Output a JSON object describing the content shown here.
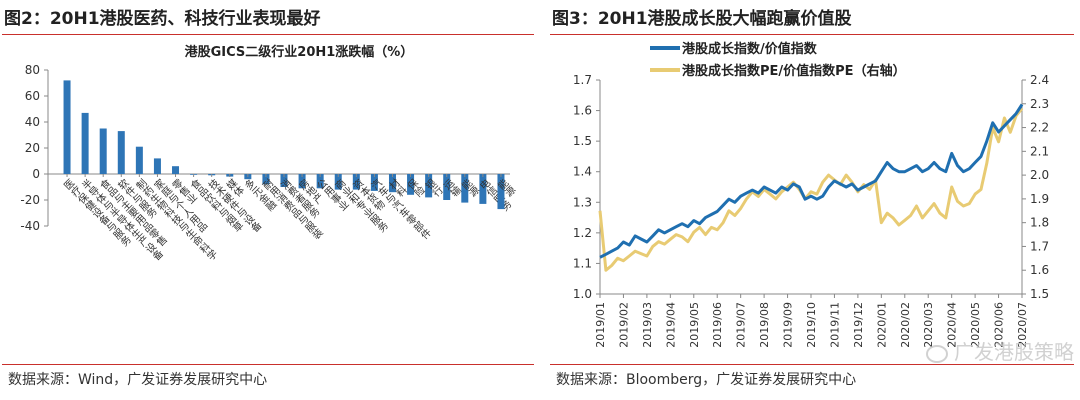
{
  "left_panel": {
    "title": "图2：20H1港股医药、科技行业表现最好",
    "source": "数据来源：Wind，广发证券发展研究中心"
  },
  "right_panel": {
    "title": "图3：20H1港股成长股大幅跑赢价值股",
    "source": "数据来源：Bloomberg，广发证券发展研究中心"
  },
  "watermark": "广发港股策略",
  "colors": {
    "bar": "#2e75b6",
    "growth_line": "#1f6fb0",
    "pe_line": "#e8cb73",
    "rule": "#c9302c"
  },
  "chart_data": [
    {
      "type": "bar",
      "title": "港股GICS二级行业20H1涨跌幅（%）",
      "ylim": [
        -40,
        80
      ],
      "yticks": [
        -40,
        -20,
        0,
        20,
        40,
        60,
        80
      ],
      "yticklabels": [
        "-40",
        "-20",
        "0",
        "20",
        "40",
        "60",
        "80"
      ],
      "categories": [
        "医疗保健设备与服务",
        "半导体与半导体生产设备",
        "食品与主要用品零售",
        "软件与服务",
        "制药生物科技与生命科学",
        "家庭与个人用品",
        "零售业",
        "食品饮料与烟草",
        "技术硬件与设备",
        "媒体",
        "多元金融",
        "耐用消费品与服装",
        "消费者服务",
        "房地产",
        "公用事业",
        "商业和专业服务",
        "资本货物",
        "汽车与汽车零部件",
        "材料",
        "保险",
        "银行",
        "运输",
        "能源",
        "电信服务",
        "能源"
      ],
      "values": [
        72,
        47,
        35,
        33,
        21,
        12,
        6,
        0,
        -1,
        -2,
        -4,
        -8,
        -10,
        -11,
        -11,
        -12,
        -12,
        -13,
        -14,
        -16,
        -18,
        -20,
        -22,
        -23,
        -27
      ]
    },
    {
      "type": "line",
      "legend": [
        "港股成长指数/价值指数",
        "港股成长指数PE/价值指数PE（右轴）"
      ],
      "x_ticks": [
        "2019/01",
        "2019/02",
        "2019/03",
        "2019/04",
        "2019/05",
        "2019/06",
        "2019/07",
        "2019/08",
        "2019/09",
        "2019/10",
        "2019/11",
        "2019/12",
        "2020/01",
        "2020/02",
        "2020/03",
        "2020/04",
        "2020/05",
        "2020/06",
        "2020/07"
      ],
      "left_axis": {
        "ylim": [
          1.0,
          1.7
        ],
        "ticks": [
          "1.0",
          "1.1",
          "1.2",
          "1.3",
          "1.4",
          "1.5",
          "1.6",
          "1.7"
        ]
      },
      "right_axis": {
        "ylim": [
          1.5,
          2.4
        ],
        "ticks": [
          "1.5",
          "1.6",
          "1.7",
          "1.8",
          "1.9",
          "2.0",
          "2.1",
          "2.2",
          "2.3",
          "2.4"
        ]
      },
      "series": [
        {
          "name": "港股成长指数/价值指数",
          "axis": "left",
          "x": [
            0,
            0.25,
            0.5,
            0.75,
            1,
            1.25,
            1.5,
            1.75,
            2,
            2.25,
            2.5,
            2.75,
            3,
            3.25,
            3.5,
            3.75,
            4,
            4.25,
            4.5,
            4.75,
            5,
            5.25,
            5.5,
            5.75,
            6,
            6.25,
            6.5,
            6.75,
            7,
            7.25,
            7.5,
            7.75,
            8,
            8.25,
            8.5,
            8.75,
            9,
            9.25,
            9.5,
            9.75,
            10,
            10.25,
            10.5,
            10.75,
            11,
            11.25,
            11.5,
            11.75,
            12,
            12.25,
            12.5,
            12.75,
            13,
            13.25,
            13.5,
            13.75,
            14,
            14.25,
            14.5,
            14.75,
            15,
            15.25,
            15.5,
            15.75,
            16,
            16.25,
            16.5,
            16.75,
            17,
            17.25,
            17.5,
            17.75,
            18
          ],
          "values": [
            1.12,
            1.13,
            1.14,
            1.15,
            1.17,
            1.16,
            1.19,
            1.18,
            1.17,
            1.19,
            1.21,
            1.2,
            1.21,
            1.22,
            1.23,
            1.22,
            1.24,
            1.23,
            1.25,
            1.26,
            1.27,
            1.29,
            1.31,
            1.3,
            1.32,
            1.33,
            1.34,
            1.33,
            1.35,
            1.34,
            1.33,
            1.35,
            1.34,
            1.36,
            1.35,
            1.31,
            1.32,
            1.31,
            1.32,
            1.35,
            1.37,
            1.36,
            1.35,
            1.36,
            1.34,
            1.35,
            1.36,
            1.37,
            1.4,
            1.43,
            1.41,
            1.4,
            1.4,
            1.41,
            1.42,
            1.4,
            1.41,
            1.43,
            1.41,
            1.4,
            1.46,
            1.42,
            1.4,
            1.41,
            1.43,
            1.45,
            1.5,
            1.56,
            1.53,
            1.55,
            1.57,
            1.59,
            1.62
          ]
        },
        {
          "name": "港股成长指数PE/价值指数PE（右轴）",
          "axis": "right",
          "x": [
            0,
            0.25,
            0.5,
            0.75,
            1,
            1.25,
            1.5,
            1.75,
            2,
            2.25,
            2.5,
            2.75,
            3,
            3.25,
            3.5,
            3.75,
            4,
            4.25,
            4.5,
            4.75,
            5,
            5.25,
            5.5,
            5.75,
            6,
            6.25,
            6.5,
            6.75,
            7,
            7.25,
            7.5,
            7.75,
            8,
            8.25,
            8.5,
            8.75,
            9,
            9.25,
            9.5,
            9.75,
            10,
            10.25,
            10.5,
            10.75,
            11,
            11.25,
            11.5,
            11.75,
            12,
            12.25,
            12.5,
            12.75,
            13,
            13.25,
            13.5,
            13.75,
            14,
            14.25,
            14.5,
            14.75,
            15,
            15.25,
            15.5,
            15.75,
            16,
            16.25,
            16.5,
            16.75,
            17,
            17.25,
            17.5,
            17.75,
            18
          ],
          "values": [
            1.85,
            1.6,
            1.62,
            1.65,
            1.64,
            1.66,
            1.68,
            1.67,
            1.66,
            1.7,
            1.72,
            1.71,
            1.73,
            1.75,
            1.74,
            1.72,
            1.76,
            1.78,
            1.75,
            1.78,
            1.77,
            1.8,
            1.85,
            1.83,
            1.86,
            1.9,
            1.93,
            1.91,
            1.94,
            1.92,
            1.9,
            1.93,
            1.95,
            1.97,
            1.94,
            1.9,
            1.93,
            1.92,
            1.97,
            2.0,
            1.98,
            1.96,
            2.0,
            1.97,
            1.93,
            1.96,
            1.94,
            1.98,
            1.8,
            1.84,
            1.82,
            1.79,
            1.81,
            1.83,
            1.87,
            1.82,
            1.85,
            1.88,
            1.84,
            1.82,
            1.95,
            1.89,
            1.87,
            1.88,
            1.92,
            1.94,
            2.05,
            2.2,
            2.14,
            2.24,
            2.18,
            2.25,
            2.28
          ]
        }
      ]
    }
  ]
}
